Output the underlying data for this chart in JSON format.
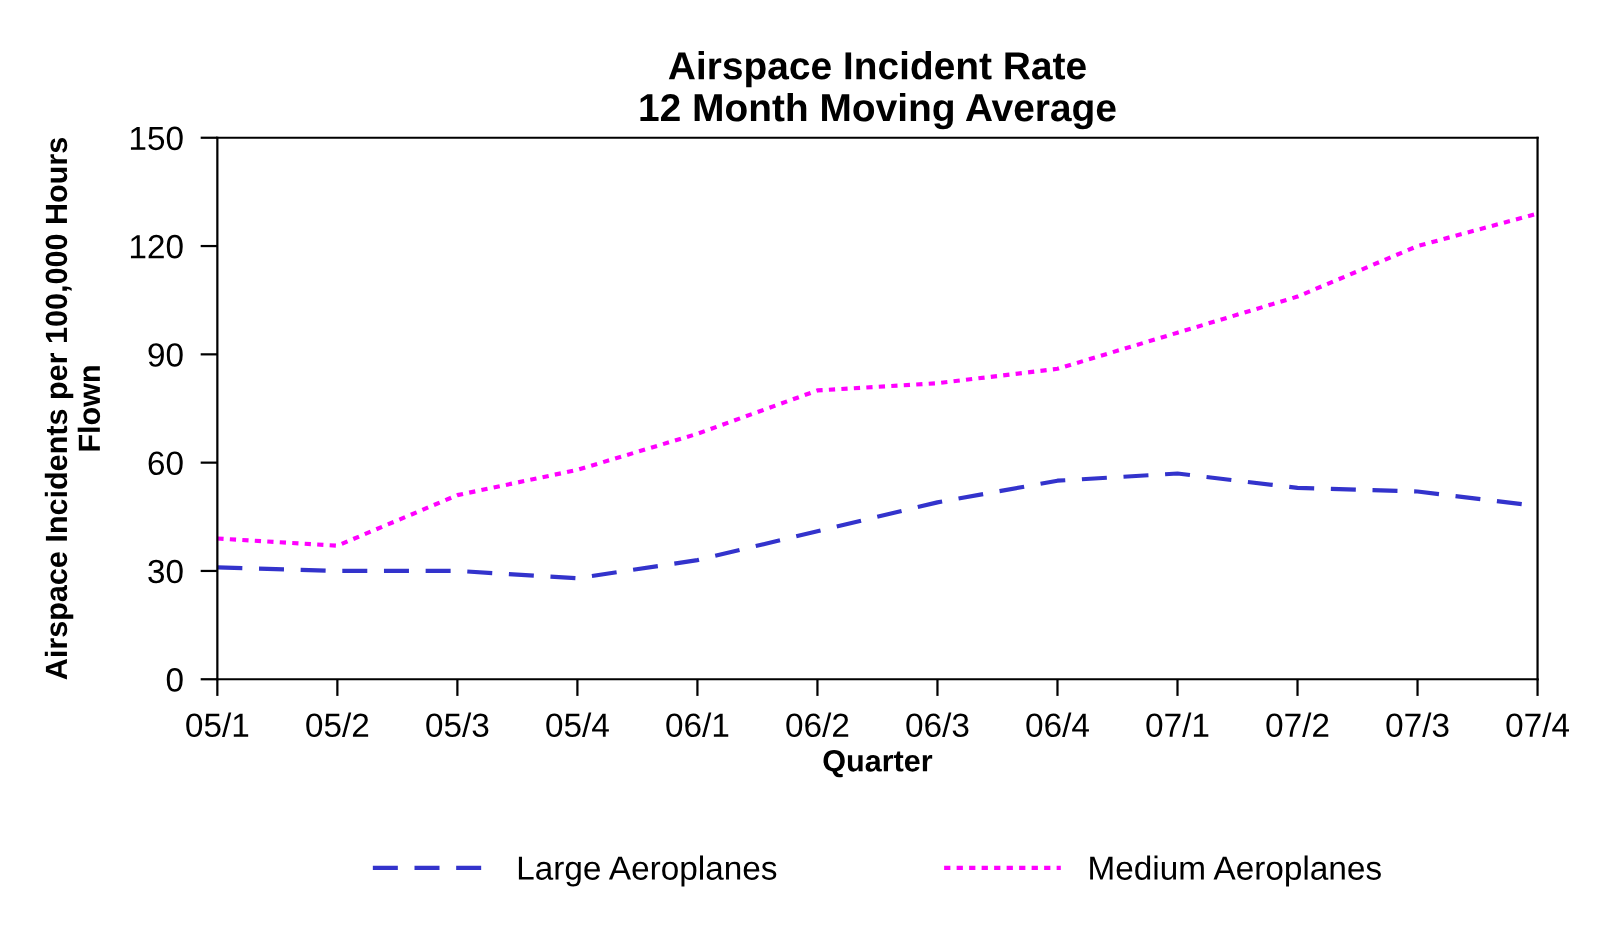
{
  "chart_data": {
    "type": "line",
    "title": "Airspace Incident Rate\n12 Month Moving Average",
    "xlabel": "Quarter",
    "ylabel": "Airspace Incidents per 100,000 Hours\nFlown",
    "categories": [
      "05/1",
      "05/2",
      "05/3",
      "05/4",
      "06/1",
      "06/2",
      "06/3",
      "06/4",
      "07/1",
      "07/2",
      "07/3",
      "07/4"
    ],
    "series": [
      {
        "name": "Large Aeroplanes",
        "color": "#3333cc",
        "line_style": "dashed",
        "values": [
          31,
          30,
          30,
          28,
          33,
          41,
          49,
          55,
          57,
          53,
          52,
          48
        ]
      },
      {
        "name": "Medium Aeroplanes",
        "color": "#ff00ff",
        "line_style": "dotted",
        "values": [
          39,
          37,
          51,
          58,
          68,
          80,
          82,
          86,
          96,
          106,
          120,
          129
        ]
      }
    ],
    "ylim": [
      0,
      150
    ],
    "yticks": [
      0,
      30,
      60,
      90,
      120,
      150
    ],
    "grid": false,
    "legend": "bottom",
    "marker": "none"
  }
}
